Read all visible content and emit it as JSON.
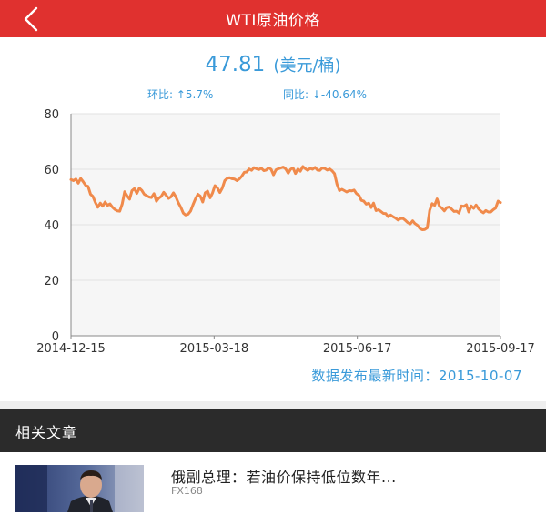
{
  "header": {
    "title": "WTI原油价格",
    "back_icon": "back-arrow-icon"
  },
  "price": {
    "value": "47.81",
    "unit": "(美元/桶)"
  },
  "stats": {
    "mom": "环比: ↑5.7%",
    "yoy": "同比: ↓-40.64%"
  },
  "chart_data": {
    "type": "line",
    "title": "",
    "xlabel": "",
    "ylabel": "",
    "ylim": [
      0,
      80
    ],
    "yticks": [
      "0",
      "20",
      "40",
      "60",
      "80"
    ],
    "xticks": [
      "2014-12-15",
      "2015-03-18",
      "2015-06-17",
      "2015-09-17"
    ],
    "grid": true,
    "line_color": "#f08a4b",
    "series": [
      {
        "name": "",
        "values": [
          56.3,
          55.9,
          56.5,
          55.0,
          56.7,
          55.5,
          54.2,
          53.8,
          51.0,
          50.2,
          48.0,
          46.3,
          47.8,
          46.7,
          48.2,
          47.0,
          47.5,
          46.3,
          45.5,
          45.0,
          44.9,
          47.5,
          51.9,
          50.4,
          49.2,
          52.3,
          53.0,
          51.3,
          53.2,
          52.4,
          51.0,
          50.5,
          50.0,
          49.8,
          51.2,
          48.5,
          49.6,
          50.2,
          51.7,
          50.6,
          49.5,
          50.1,
          51.5,
          50.0,
          47.9,
          46.3,
          44.2,
          43.5,
          43.8,
          44.9,
          47.2,
          49.3,
          51.0,
          50.3,
          48.2,
          51.5,
          52.1,
          49.7,
          51.4,
          54.1,
          53.3,
          51.6,
          53.2,
          55.9,
          56.7,
          57.0,
          56.6,
          56.5,
          55.9,
          56.5,
          57.5,
          58.9,
          59.0,
          60.1,
          59.6,
          60.6,
          60.2,
          59.9,
          60.4,
          59.5,
          59.7,
          60.5,
          60.0,
          58.0,
          59.8,
          60.2,
          60.5,
          60.8,
          60.1,
          58.6,
          60.0,
          60.5,
          58.5,
          60.1,
          59.3,
          61.0,
          60.2,
          59.6,
          60.3,
          60.0,
          60.7,
          59.7,
          59.6,
          60.5,
          60.3,
          59.7,
          60.1,
          59.4,
          58.4,
          54.6,
          52.3,
          52.8,
          52.3,
          51.8,
          52.3,
          52.2,
          52.5,
          51.2,
          50.6,
          48.8,
          48.5,
          47.4,
          47.8,
          46.2,
          47.8,
          45.1,
          45.4,
          44.8,
          44.1,
          44.0,
          42.9,
          43.5,
          42.9,
          42.4,
          41.7,
          42.2,
          42.3,
          41.6,
          40.8,
          40.3,
          41.4,
          40.4,
          39.8,
          38.6,
          38.2,
          38.3,
          38.9,
          45.2,
          47.6,
          47.0,
          49.3,
          46.6,
          46.0,
          45.0,
          46.2,
          46.4,
          45.6,
          44.8,
          44.9,
          44.2,
          46.8,
          46.6,
          47.2,
          44.6,
          46.8,
          45.9,
          47.1,
          45.7,
          44.9,
          44.3,
          45.1,
          44.6,
          44.6,
          45.4,
          46.0,
          48.5,
          48.0
        ]
      }
    ]
  },
  "release": {
    "text": "数据发布最新时间：2015-10-07"
  },
  "section": {
    "title": "相关文章"
  },
  "article": {
    "title": "俄副总理：若油价保持低位数年...",
    "source": "FX168"
  }
}
